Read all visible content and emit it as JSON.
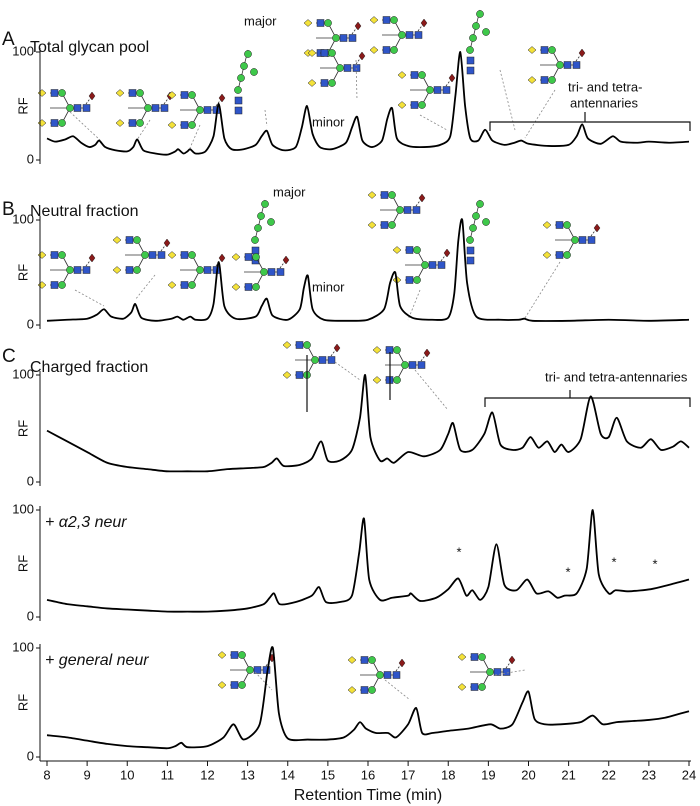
{
  "chart_data": [
    {
      "type": "line",
      "panel_label": "A",
      "title": "Total glycan pool",
      "ylabel": "RF",
      "ylim": [
        0,
        100
      ],
      "yticks": [
        0,
        100
      ],
      "xlim": [
        8,
        24
      ],
      "annotations": [
        "major",
        "minor",
        "tri- and tetra-",
        "antennaries"
      ],
      "color": "#000000",
      "x": [
        8.0,
        8.2,
        8.45,
        8.65,
        8.85,
        9.05,
        9.2,
        9.3,
        9.45,
        9.7,
        10.0,
        10.15,
        10.25,
        10.4,
        10.7,
        11.0,
        11.2,
        11.27,
        11.4,
        11.5,
        11.57,
        11.7,
        11.95,
        12.15,
        12.28,
        12.42,
        12.6,
        12.9,
        13.2,
        13.35,
        13.48,
        13.62,
        13.9,
        14.2,
        14.35,
        14.48,
        14.62,
        14.8,
        15.1,
        15.45,
        15.6,
        15.73,
        15.86,
        16.1,
        16.35,
        16.48,
        16.6,
        16.72,
        17.0,
        17.4,
        17.8,
        18.05,
        18.18,
        18.3,
        18.42,
        18.55,
        18.75,
        18.92,
        19.1,
        19.4,
        19.65,
        19.82,
        20.0,
        20.5,
        21.0,
        21.2,
        21.34,
        21.48,
        21.8,
        22.1,
        22.3,
        22.7,
        23.0,
        23.5,
        24.0
      ],
      "values": [
        20,
        17,
        19,
        22,
        16,
        12,
        14,
        18,
        12,
        9,
        8,
        12,
        19,
        9,
        6,
        5,
        8,
        10,
        6,
        8,
        10,
        6,
        8,
        22,
        52,
        20,
        10,
        10,
        14,
        22,
        27,
        14,
        9,
        12,
        30,
        50,
        24,
        12,
        10,
        16,
        30,
        40,
        18,
        12,
        18,
        38,
        48,
        20,
        13,
        12,
        14,
        22,
        60,
        100,
        50,
        20,
        18,
        28,
        18,
        14,
        16,
        18,
        15,
        13,
        14,
        22,
        33,
        20,
        15,
        22,
        17,
        16,
        17,
        16,
        17
      ]
    },
    {
      "type": "line",
      "panel_label": "B",
      "title": "Neutral fraction",
      "ylabel": "RF",
      "ylim": [
        0,
        100
      ],
      "yticks": [
        0,
        100
      ],
      "xlim": [
        8,
        24
      ],
      "annotations": [
        "major",
        "minor"
      ],
      "color": "#000000",
      "x": [
        8.0,
        8.5,
        9.0,
        9.25,
        9.42,
        9.6,
        9.9,
        10.1,
        10.2,
        10.35,
        10.7,
        11.1,
        11.25,
        11.4,
        11.57,
        11.7,
        12.0,
        12.15,
        12.28,
        12.42,
        12.7,
        13.2,
        13.35,
        13.48,
        13.62,
        14.0,
        14.3,
        14.4,
        14.5,
        14.62,
        14.9,
        15.5,
        16.0,
        16.4,
        16.55,
        16.68,
        16.8,
        17.1,
        17.6,
        18.0,
        18.15,
        18.25,
        18.35,
        18.47,
        18.7,
        19.3,
        19.75,
        19.9,
        20.1,
        21.0,
        22.0,
        23.0,
        24.0
      ],
      "values": [
        4,
        5,
        6,
        10,
        15,
        8,
        6,
        12,
        20,
        7,
        4,
        6,
        8,
        5,
        8,
        5,
        6,
        20,
        60,
        18,
        6,
        8,
        18,
        25,
        9,
        5,
        15,
        35,
        47,
        15,
        5,
        4,
        5,
        15,
        40,
        50,
        18,
        7,
        5,
        7,
        30,
        80,
        100,
        40,
        8,
        5,
        5,
        6,
        4,
        4,
        5,
        4,
        5
      ]
    },
    {
      "type": "line",
      "panel_label": "C",
      "title": "Charged fraction",
      "ylabel": "RF",
      "ylim": [
        0,
        100
      ],
      "yticks": [
        0,
        100
      ],
      "xlim": [
        8,
        24
      ],
      "annotations": [
        "tri- and tetra-antennaries"
      ],
      "color": "#000000",
      "x": [
        8.0,
        8.5,
        9.0,
        9.5,
        10.0,
        10.5,
        11.0,
        11.5,
        12.0,
        12.5,
        13.0,
        13.4,
        13.6,
        13.73,
        13.9,
        14.3,
        14.6,
        14.83,
        15.0,
        15.3,
        15.6,
        15.8,
        15.93,
        16.06,
        16.3,
        16.48,
        16.65,
        17.0,
        17.4,
        17.8,
        18.0,
        18.12,
        18.3,
        18.6,
        18.9,
        19.1,
        19.3,
        19.6,
        19.85,
        20.05,
        20.25,
        20.47,
        20.65,
        20.82,
        21.0,
        21.3,
        21.55,
        21.8,
        22.0,
        22.2,
        22.45,
        22.8,
        23.05,
        23.3,
        23.6,
        23.8,
        24.0
      ],
      "values": [
        48,
        38,
        28,
        18,
        14,
        12,
        10,
        10,
        10,
        12,
        13,
        14,
        18,
        22,
        15,
        16,
        22,
        38,
        20,
        20,
        30,
        60,
        100,
        42,
        20,
        22,
        18,
        28,
        24,
        30,
        45,
        55,
        30,
        30,
        45,
        65,
        35,
        30,
        32,
        42,
        32,
        38,
        28,
        35,
        28,
        40,
        80,
        45,
        42,
        60,
        38,
        32,
        40,
        30,
        33,
        38,
        32
      ]
    },
    {
      "type": "line",
      "title": "+ α2,3 neur",
      "ylabel": "RF",
      "ylim": [
        0,
        100
      ],
      "yticks": [
        0,
        100
      ],
      "xlim": [
        8,
        24
      ],
      "annotations": [
        "*",
        "*",
        "*",
        "*"
      ],
      "color": "#000000",
      "x": [
        8.0,
        8.5,
        9.0,
        9.5,
        10.0,
        10.5,
        11.0,
        11.5,
        12.0,
        12.5,
        13.0,
        13.4,
        13.55,
        13.66,
        13.8,
        14.2,
        14.6,
        14.78,
        14.95,
        15.3,
        15.6,
        15.78,
        15.9,
        16.03,
        16.3,
        16.6,
        17.0,
        17.07,
        17.3,
        17.7,
        18.0,
        18.25,
        18.45,
        18.6,
        18.8,
        19.0,
        19.2,
        19.4,
        19.7,
        19.97,
        20.2,
        20.5,
        20.72,
        20.9,
        21.2,
        21.45,
        21.6,
        21.75,
        22.0,
        22.17,
        22.5,
        23.05,
        23.5,
        24.0
      ],
      "values": [
        16,
        12,
        10,
        8,
        7,
        6,
        5,
        5,
        5,
        6,
        8,
        12,
        18,
        22,
        12,
        14,
        20,
        28,
        14,
        14,
        20,
        60,
        92,
        35,
        16,
        18,
        20,
        22,
        15,
        18,
        26,
        36,
        20,
        25,
        16,
        28,
        68,
        30,
        25,
        35,
        22,
        24,
        18,
        20,
        22,
        45,
        100,
        40,
        22,
        25,
        24,
        26,
        30,
        35
      ]
    },
    {
      "type": "line",
      "title": "+ general neur",
      "ylabel": "RF",
      "ylim": [
        0,
        100
      ],
      "yticks": [
        0,
        100
      ],
      "xlim": [
        8,
        24
      ],
      "xticks": [
        8,
        9,
        10,
        11,
        12,
        13,
        14,
        15,
        16,
        17,
        18,
        19,
        20,
        21,
        22,
        23,
        24
      ],
      "xlabel": "Retention Time (min)",
      "color": "#000000",
      "x": [
        8.0,
        8.5,
        9.0,
        9.5,
        10.0,
        10.5,
        11.0,
        11.2,
        11.35,
        11.5,
        12.0,
        12.4,
        12.65,
        12.9,
        13.3,
        13.5,
        13.63,
        13.78,
        14.0,
        14.5,
        15.0,
        15.4,
        15.65,
        15.8,
        15.95,
        16.2,
        16.5,
        16.7,
        17.0,
        17.2,
        17.35,
        17.6,
        18.0,
        18.5,
        19.05,
        19.3,
        19.6,
        19.85,
        20.0,
        20.15,
        20.4,
        20.8,
        21.3,
        21.6,
        21.85,
        22.2,
        22.6,
        23.0,
        23.4,
        23.8,
        24.0
      ],
      "values": [
        20,
        18,
        15,
        12,
        10,
        9,
        8,
        10,
        13,
        9,
        10,
        18,
        30,
        16,
        30,
        80,
        100,
        40,
        17,
        16,
        16,
        18,
        25,
        32,
        26,
        22,
        22,
        18,
        30,
        45,
        22,
        22,
        24,
        26,
        30,
        26,
        30,
        50,
        60,
        35,
        30,
        30,
        32,
        38,
        30,
        32,
        33,
        34,
        36,
        40,
        42
      ]
    }
  ]
}
